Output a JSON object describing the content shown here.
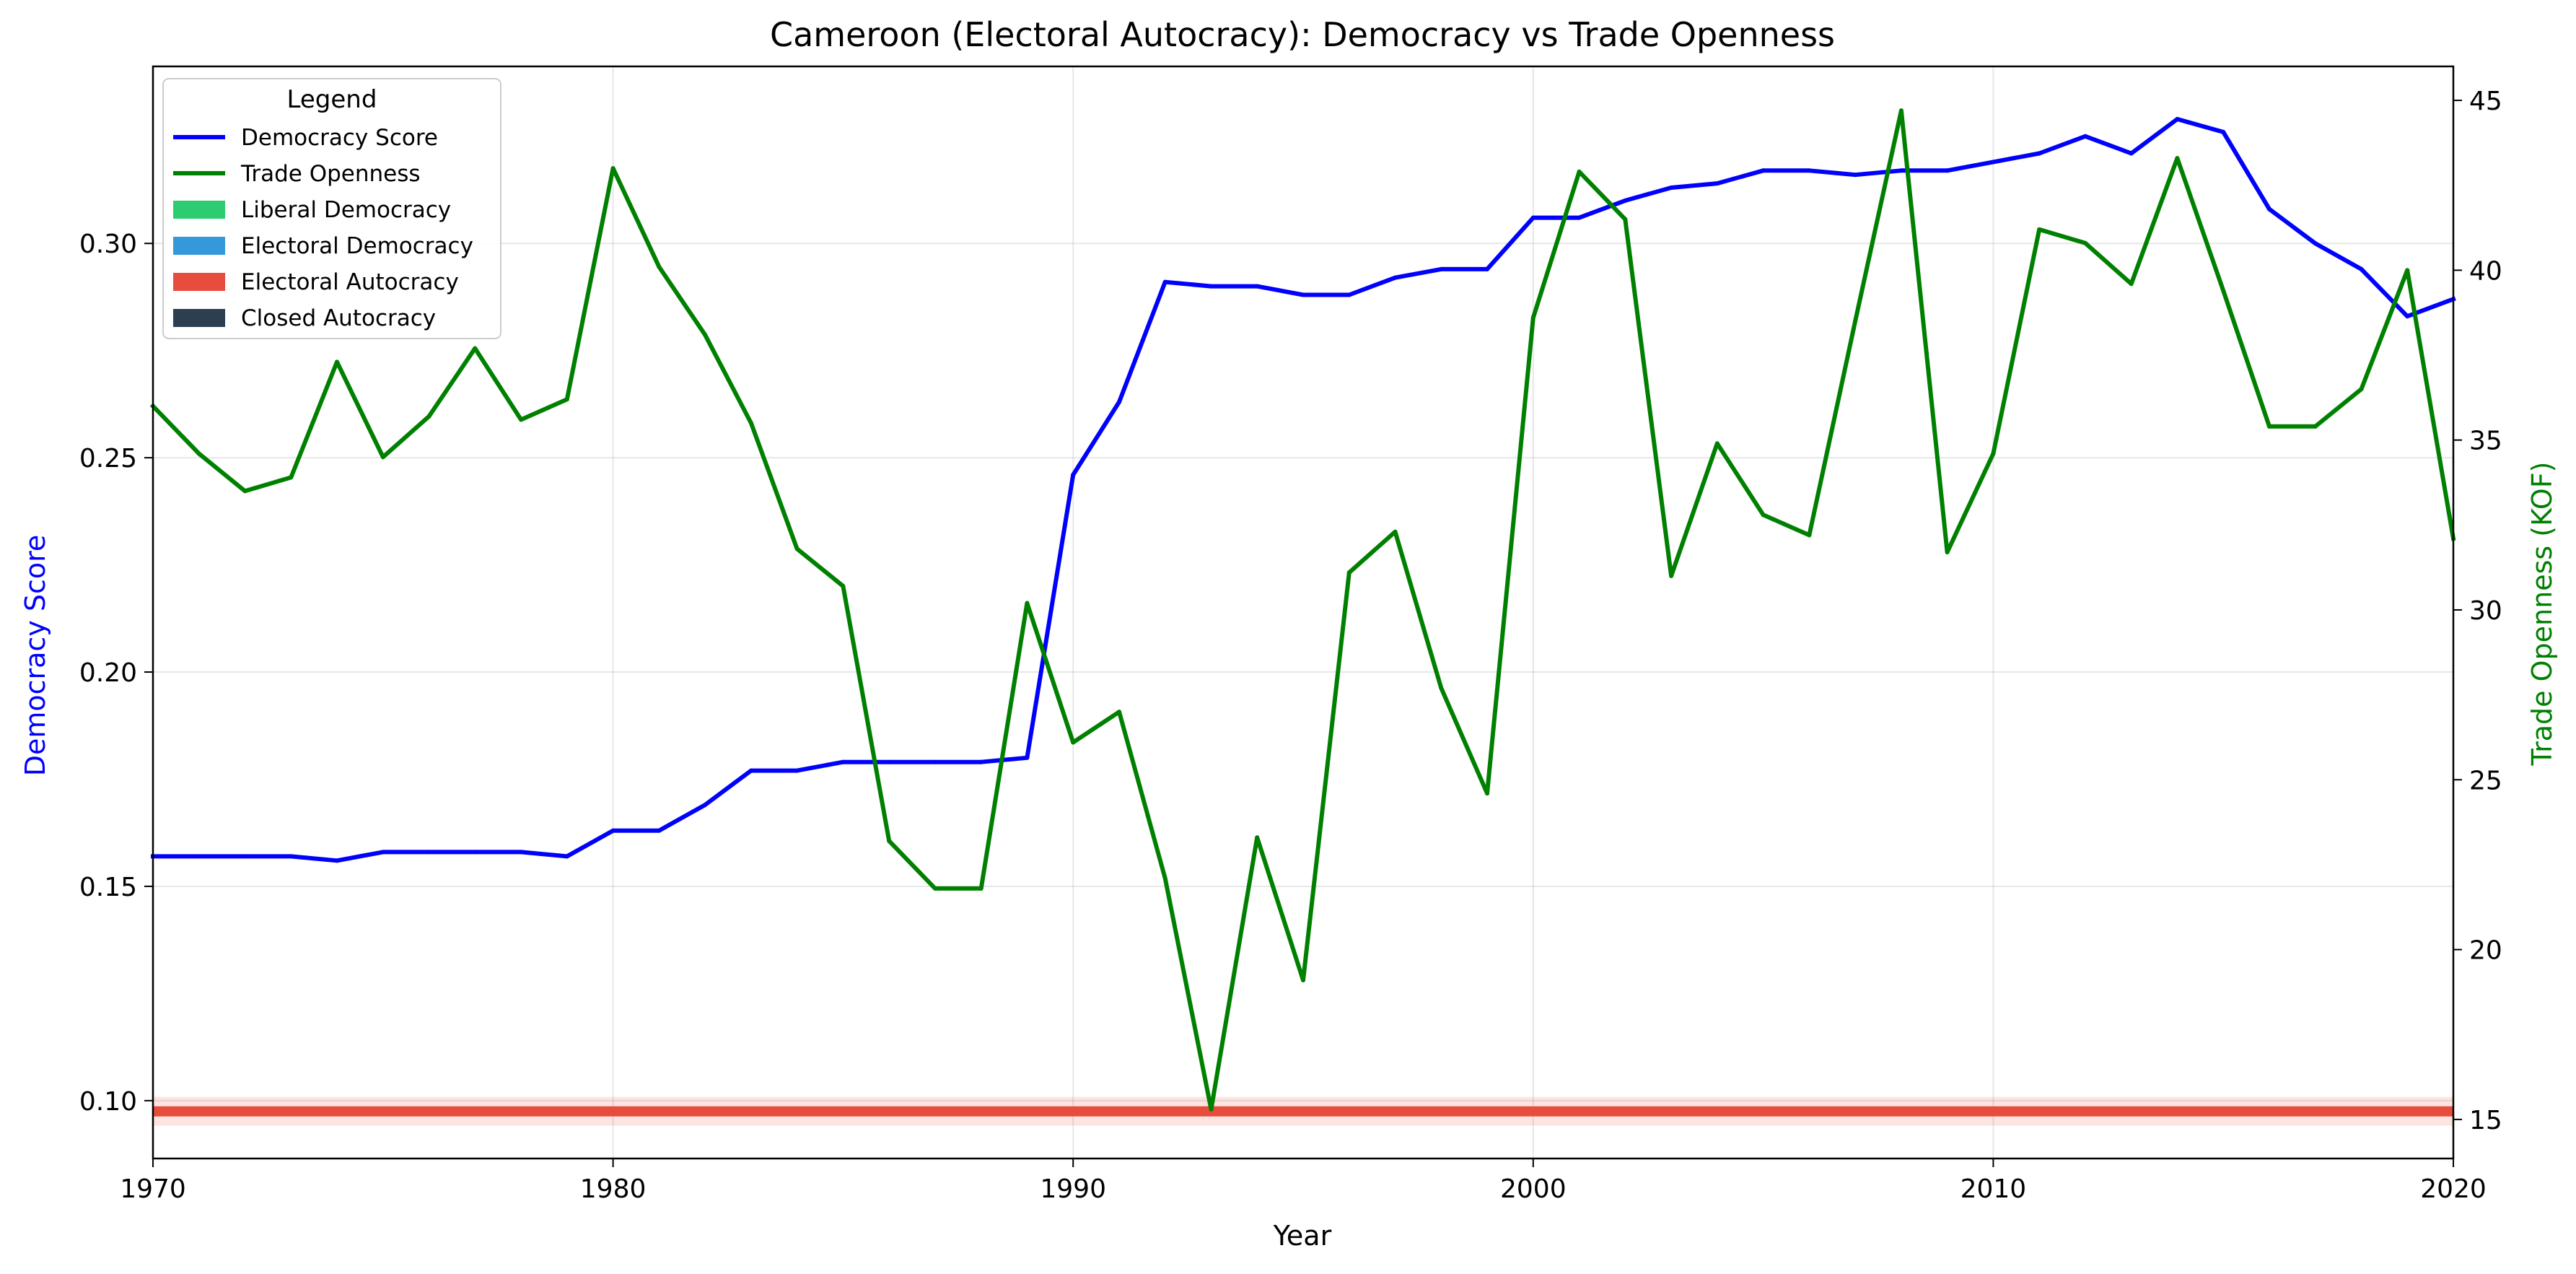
{
  "chart_data": {
    "type": "line",
    "title": "Cameroon (Electoral Autocracy): Democracy vs Trade Openness",
    "xlabel": "Year",
    "ylabel_left": "Democracy Score",
    "ylabel_right": "Trade Openness (KOF)",
    "xlim": [
      1970,
      2020
    ],
    "ylim_left": [
      0.0865,
      0.3413
    ],
    "ylim_right": [
      13.85,
      46.0
    ],
    "x_ticks": [
      "1970",
      "1980",
      "1990",
      "2000",
      "2010",
      "2020"
    ],
    "y_ticks_left": [
      "0.10",
      "0.15",
      "0.20",
      "0.25",
      "0.30"
    ],
    "y_ticks_right": [
      "15",
      "20",
      "25",
      "30",
      "35",
      "40",
      "45"
    ],
    "grid": true,
    "legend_title": "Legend",
    "legend_placement": "top-left",
    "regime_band": {
      "label": "Electoral Autocracy",
      "value": 0.0975
    },
    "series": [
      {
        "name": "Democracy Score",
        "axis": "left",
        "color": "#0000ff",
        "x": [
          1970,
          1971,
          1972,
          1973,
          1974,
          1975,
          1976,
          1977,
          1978,
          1979,
          1980,
          1981,
          1982,
          1983,
          1984,
          1985,
          1986,
          1987,
          1988,
          1989,
          1990,
          1991,
          1992,
          1993,
          1994,
          1995,
          1996,
          1997,
          1998,
          1999,
          2000,
          2001,
          2002,
          2003,
          2004,
          2005,
          2006,
          2007,
          2008,
          2009,
          2010,
          2011,
          2012,
          2013,
          2014,
          2015,
          2016,
          2017,
          2018,
          2019,
          2020
        ],
        "values": [
          0.157,
          0.157,
          0.157,
          0.157,
          0.156,
          0.158,
          0.158,
          0.158,
          0.158,
          0.157,
          0.163,
          0.163,
          0.169,
          0.177,
          0.177,
          0.179,
          0.179,
          0.179,
          0.179,
          0.18,
          0.246,
          0.263,
          0.291,
          0.29,
          0.29,
          0.288,
          0.288,
          0.292,
          0.294,
          0.294,
          0.306,
          0.306,
          0.31,
          0.313,
          0.314,
          0.317,
          0.317,
          0.316,
          0.317,
          0.317,
          0.319,
          0.321,
          0.325,
          0.321,
          0.329,
          0.326,
          0.308,
          0.3,
          0.294,
          0.283,
          0.287
        ]
      },
      {
        "name": "Trade Openness",
        "axis": "right",
        "color": "#008000",
        "x": [
          1970,
          1971,
          1972,
          1973,
          1974,
          1975,
          1976,
          1977,
          1978,
          1979,
          1980,
          1981,
          1982,
          1983,
          1984,
          1985,
          1986,
          1987,
          1988,
          1989,
          1990,
          1991,
          1992,
          1993,
          1994,
          1995,
          1996,
          1997,
          1998,
          1999,
          2000,
          2001,
          2002,
          2003,
          2004,
          2005,
          2006,
          2007,
          2008,
          2009,
          2010,
          2011,
          2012,
          2013,
          2014,
          2015,
          2016,
          2017,
          2018,
          2019,
          2020
        ],
        "values": [
          36.0,
          34.6,
          33.5,
          33.9,
          37.3,
          34.5,
          35.7,
          37.7,
          35.6,
          36.2,
          43.0,
          40.1,
          38.1,
          35.5,
          31.8,
          30.7,
          23.2,
          21.8,
          21.8,
          30.2,
          26.1,
          27.0,
          22.1,
          15.3,
          23.3,
          19.1,
          31.1,
          32.3,
          27.7,
          24.6,
          38.6,
          42.9,
          41.5,
          31.0,
          34.9,
          32.8,
          32.2,
          38.5,
          44.7,
          31.7,
          34.6,
          41.2,
          40.8,
          39.6,
          43.3,
          39.4,
          35.4,
          35.4,
          36.5,
          40.0,
          32.1
        ]
      }
    ],
    "legend": [
      {
        "label": "Democracy Score",
        "kind": "line",
        "color": "#0000ff"
      },
      {
        "label": "Trade Openness",
        "kind": "line",
        "color": "#008000"
      },
      {
        "label": "Liberal Democracy",
        "kind": "patch",
        "color": "#2ecc71"
      },
      {
        "label": "Electoral Democracy",
        "kind": "patch",
        "color": "#3498db"
      },
      {
        "label": "Electoral Autocracy",
        "kind": "patch",
        "color": "#e74c3c"
      },
      {
        "label": "Closed Autocracy",
        "kind": "patch",
        "color": "#2c3e50"
      }
    ]
  }
}
